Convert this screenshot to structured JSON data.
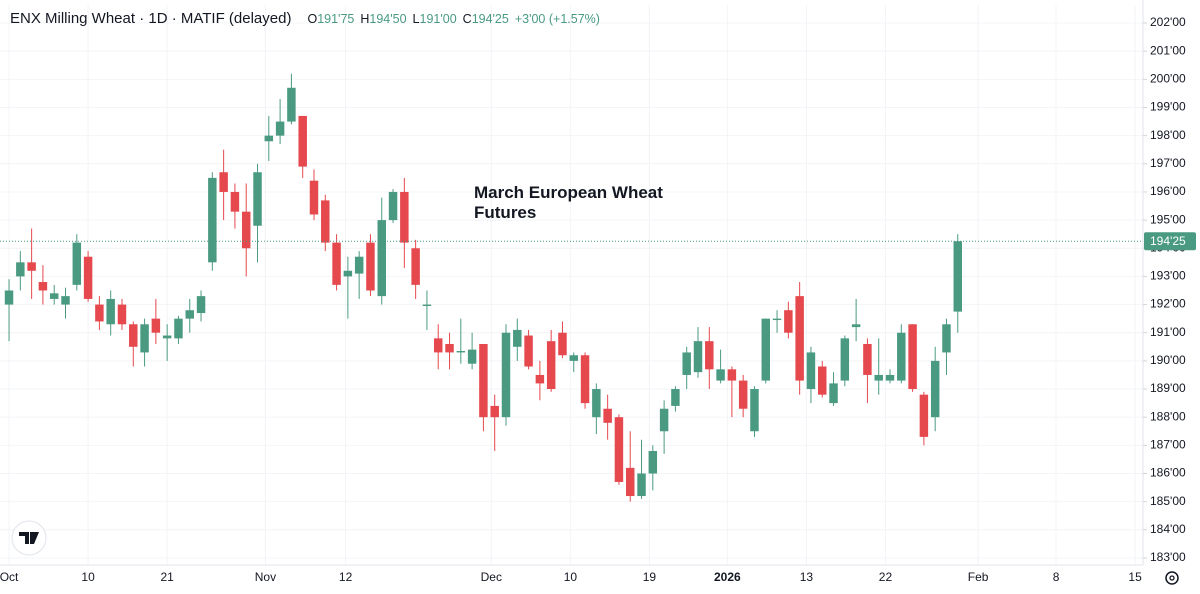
{
  "chart_data": {
    "type": "candlestick",
    "title": "ENX Milling Wheat · 1D · MATIF (delayed)",
    "ohlc_header": [
      {
        "label": "O",
        "value": "191'75"
      },
      {
        "label": "H",
        "value": "194'50"
      },
      {
        "label": "L",
        "value": "191'00"
      },
      {
        "label": "C",
        "value": "194'25"
      }
    ],
    "change": "+3'00 (+1.57%)",
    "annotation": "March European Wheat Futures",
    "up_color": "#4a9a82",
    "down_color": "#e5484d",
    "grid": true,
    "categories": [
      null,
      null,
      null,
      null,
      null,
      null,
      null,
      null,
      null,
      null,
      null,
      null,
      null,
      null,
      null,
      null,
      null,
      null,
      null,
      null,
      null,
      null,
      null,
      null,
      null,
      null,
      null,
      null,
      null,
      null,
      null,
      null,
      null,
      null,
      null,
      null,
      null,
      null,
      null,
      null,
      null,
      null,
      null,
      null,
      null,
      null,
      null,
      null,
      null,
      null,
      null,
      null,
      null,
      null,
      null,
      null,
      null,
      null,
      null,
      null,
      null,
      null,
      null,
      null,
      null,
      null,
      null,
      null,
      null,
      null,
      null,
      null,
      null,
      null,
      null,
      null,
      null,
      null,
      null,
      null,
      null,
      null,
      null,
      null,
      null
    ],
    "open": [
      192.0,
      193.0,
      193.5,
      192.8,
      192.2,
      192.0,
      192.7,
      193.7,
      192.0,
      191.3,
      192.0,
      191.3,
      190.3,
      191.5,
      190.8,
      190.8,
      191.5,
      191.7,
      193.5,
      196.7,
      196.0,
      195.3,
      194.8,
      197.8,
      198.0,
      198.5,
      198.7,
      196.4,
      195.7,
      194.2,
      193.0,
      193.1,
      194.2,
      192.3,
      195.0,
      196.0,
      194.0,
      191.95,
      190.8,
      190.6,
      190.3,
      189.9,
      190.6,
      188.4,
      188.0,
      190.5,
      190.9,
      189.5,
      190.7,
      191.0,
      190.0,
      190.2,
      188.0,
      188.3,
      188.0,
      186.2,
      185.2,
      186.0,
      187.5,
      188.4,
      189.5,
      189.6,
      190.7,
      189.3,
      189.7,
      189.3,
      187.5,
      189.3,
      191.45,
      191.8,
      192.3,
      189.0,
      189.8,
      188.5,
      189.3,
      191.2,
      190.6,
      189.3,
      189.3,
      189.3,
      191.3,
      188.8,
      188.0,
      190.3,
      191.75
    ],
    "high": [
      192.9,
      193.9,
      194.7,
      193.4,
      192.7,
      192.6,
      194.5,
      193.9,
      192.3,
      192.5,
      192.2,
      191.4,
      191.5,
      192.2,
      191.3,
      191.6,
      192.2,
      192.5,
      196.7,
      197.5,
      196.3,
      196.3,
      197.0,
      198.7,
      199.3,
      200.2,
      198.7,
      196.8,
      195.9,
      194.5,
      193.7,
      193.9,
      194.5,
      195.8,
      196.1,
      196.5,
      194.3,
      192.5,
      191.3,
      191.0,
      191.5,
      191.0,
      190.6,
      188.8,
      191.3,
      191.5,
      191.1,
      190.0,
      191.1,
      191.4,
      190.3,
      190.3,
      189.2,
      188.8,
      188.1,
      187.5,
      187.2,
      187.0,
      188.6,
      189.1,
      190.5,
      191.2,
      191.2,
      190.4,
      189.8,
      189.5,
      189.1,
      191.5,
      191.8,
      192.1,
      192.8,
      190.5,
      190.0,
      189.6,
      190.9,
      192.2,
      190.8,
      190.8,
      189.7,
      191.3,
      191.3,
      188.9,
      190.5,
      191.5,
      194.5
    ],
    "low": [
      190.7,
      192.5,
      192.2,
      192.0,
      192.0,
      191.5,
      192.5,
      192.1,
      191.1,
      190.9,
      191.1,
      189.8,
      189.8,
      190.6,
      190.0,
      190.6,
      191.0,
      191.4,
      193.2,
      195.0,
      194.7,
      193.0,
      193.5,
      197.1,
      197.7,
      198.4,
      196.5,
      195.0,
      193.9,
      192.5,
      191.5,
      192.2,
      192.3,
      192.0,
      194.9,
      193.3,
      192.2,
      191.1,
      189.7,
      189.7,
      189.9,
      189.7,
      187.5,
      186.8,
      187.7,
      190.0,
      189.7,
      188.6,
      188.9,
      190.1,
      189.6,
      188.3,
      187.4,
      187.2,
      185.6,
      185.0,
      185.1,
      185.4,
      186.7,
      188.2,
      189.0,
      189.4,
      189.0,
      189.2,
      188.0,
      188.0,
      187.3,
      189.2,
      191.0,
      190.8,
      188.8,
      188.5,
      188.7,
      188.4,
      189.1,
      190.7,
      188.5,
      188.8,
      189.2,
      189.2,
      188.9,
      187.0,
      187.5,
      189.5,
      191.0
    ],
    "close": [
      192.5,
      193.5,
      193.2,
      192.5,
      192.4,
      192.3,
      194.2,
      192.2,
      191.4,
      192.2,
      191.3,
      190.5,
      191.3,
      191.0,
      190.9,
      191.5,
      191.8,
      192.3,
      196.5,
      196.0,
      195.3,
      194.0,
      196.7,
      198.0,
      198.5,
      199.7,
      196.9,
      195.2,
      194.2,
      192.7,
      193.2,
      193.7,
      192.5,
      195.0,
      196.0,
      194.2,
      192.7,
      192.0,
      190.3,
      190.3,
      190.35,
      190.4,
      188.0,
      188.0,
      191.0,
      191.1,
      189.8,
      189.2,
      189.0,
      190.2,
      190.2,
      188.5,
      189.0,
      187.8,
      185.7,
      185.2,
      186.0,
      186.8,
      188.3,
      189.0,
      190.3,
      190.7,
      189.7,
      189.7,
      189.3,
      188.3,
      189.0,
      191.5,
      191.5,
      191.0,
      189.3,
      190.3,
      188.8,
      189.2,
      190.8,
      191.3,
      189.5,
      189.5,
      189.5,
      191.0,
      189.0,
      187.3,
      190.0,
      191.3,
      194.25
    ],
    "last_price": {
      "value": 194.25,
      "label": "194'25"
    },
    "xlim": [
      -0.8,
      100.4
    ],
    "xticks": [
      {
        "value": 0,
        "label": "Oct"
      },
      {
        "value": 7,
        "label": "10"
      },
      {
        "value": 14,
        "label": "21"
      },
      {
        "value": 22.7,
        "label": "Nov"
      },
      {
        "value": 29.8,
        "label": "12"
      },
      {
        "value": 42.7,
        "label": "Dec"
      },
      {
        "value": 49.7,
        "label": "10"
      },
      {
        "value": 56.7,
        "label": "19"
      },
      {
        "value": 63.6,
        "label": "2026"
      },
      {
        "value": 70.6,
        "label": "13"
      },
      {
        "value": 77.6,
        "label": "22"
      },
      {
        "value": 85.8,
        "label": "Feb"
      },
      {
        "value": 92.7,
        "label": "8"
      },
      {
        "value": 99.7,
        "label": "15"
      }
    ],
    "ylim": [
      182.75,
      202.64
    ],
    "yticks": [
      {
        "value": 183,
        "label": "183'00"
      },
      {
        "value": 184,
        "label": "184'00"
      },
      {
        "value": 185,
        "label": "185'00"
      },
      {
        "value": 186,
        "label": "186'00"
      },
      {
        "value": 187,
        "label": "187'00"
      },
      {
        "value": 188,
        "label": "188'00"
      },
      {
        "value": 189,
        "label": "189'00"
      },
      {
        "value": 190,
        "label": "190'00"
      },
      {
        "value": 191,
        "label": "191'00"
      },
      {
        "value": 192,
        "label": "192'00"
      },
      {
        "value": 193,
        "label": "193'00"
      },
      {
        "value": 194,
        "label": "194'00"
      },
      {
        "value": 195,
        "label": "195'00"
      },
      {
        "value": 196,
        "label": "196'00"
      },
      {
        "value": 197,
        "label": "197'00"
      },
      {
        "value": 198,
        "label": "198'00"
      },
      {
        "value": 199,
        "label": "199'00"
      },
      {
        "value": 200,
        "label": "200'00"
      },
      {
        "value": 201,
        "label": "201'00"
      },
      {
        "value": 202,
        "label": "202'00"
      }
    ]
  }
}
